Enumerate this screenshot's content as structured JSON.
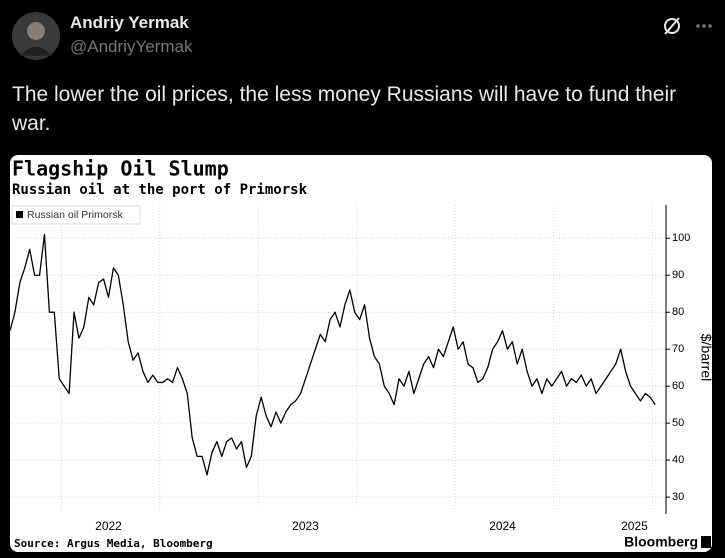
{
  "post": {
    "author": "Andriy Yermak",
    "handle": "@AndriyYermak",
    "text": "The lower the oil prices, the less money Russians will have to fund their war."
  },
  "chart_data": {
    "type": "line",
    "title": "Flagship Oil Slump",
    "subtitle": "Russian oil at the port of Primorsk",
    "y_label": "$/barrel",
    "source": "Source: Argus Media, Bloomberg",
    "brand": "Bloomberg",
    "xlim": [
      2022,
      2025.33
    ],
    "ylim": [
      26.5,
      109
    ],
    "xticks": [
      {
        "value": 2022.5,
        "label": "2022"
      },
      {
        "value": 2023.5,
        "label": "2023"
      },
      {
        "value": 2024.5,
        "label": "2024"
      },
      {
        "value": 2025.17,
        "label": "2025"
      }
    ],
    "xgrid": [
      2022.26,
      2022.76,
      2023.26,
      2023.76,
      2024.26,
      2024.76,
      2025.26
    ],
    "yticks": [
      30,
      40,
      50,
      60,
      70,
      80,
      90,
      100
    ],
    "grid": true,
    "legend": "upper left",
    "x": [
      2022,
      2022.025,
      2022.05,
      2022.075,
      2022.1,
      2022.125,
      2022.15,
      2022.175,
      2022.2,
      2022.225,
      2022.25,
      2022.275,
      2022.3,
      2022.325,
      2022.35,
      2022.375,
      2022.4,
      2022.425,
      2022.45,
      2022.475,
      2022.5,
      2022.525,
      2022.55,
      2022.575,
      2022.6,
      2022.625,
      2022.65,
      2022.675,
      2022.7,
      2022.725,
      2022.75,
      2022.775,
      2022.8,
      2022.825,
      2022.85,
      2022.875,
      2022.9,
      2022.925,
      2022.95,
      2022.975,
      2023,
      2023.025,
      2023.05,
      2023.075,
      2023.1,
      2023.125,
      2023.15,
      2023.175,
      2023.2,
      2023.225,
      2023.25,
      2023.275,
      2023.3,
      2023.325,
      2023.35,
      2023.375,
      2023.4,
      2023.425,
      2023.45,
      2023.475,
      2023.5,
      2023.525,
      2023.55,
      2023.575,
      2023.6,
      2023.625,
      2023.65,
      2023.675,
      2023.7,
      2023.725,
      2023.75,
      2023.775,
      2023.8,
      2023.825,
      2023.85,
      2023.875,
      2023.9,
      2023.925,
      2023.95,
      2023.975,
      2024,
      2024.025,
      2024.05,
      2024.075,
      2024.1,
      2024.125,
      2024.15,
      2024.175,
      2024.2,
      2024.225,
      2024.25,
      2024.275,
      2024.3,
      2024.325,
      2024.35,
      2024.375,
      2024.4,
      2024.425,
      2024.45,
      2024.475,
      2024.5,
      2024.525,
      2024.55,
      2024.575,
      2024.6,
      2024.625,
      2024.65,
      2024.675,
      2024.7,
      2024.725,
      2024.75,
      2024.775,
      2024.8,
      2024.825,
      2024.85,
      2024.875,
      2024.9,
      2024.925,
      2024.95,
      2024.975,
      2025,
      2025.025,
      2025.05,
      2025.075,
      2025.1,
      2025.125,
      2025.15,
      2025.175,
      2025.2,
      2025.225,
      2025.25,
      2025.275
    ],
    "series": [
      {
        "name": "Russian oil Primorsk",
        "color": "#000000",
        "values": [
          75,
          80,
          88,
          92,
          97,
          90,
          90,
          101,
          80,
          80,
          62,
          60,
          58,
          80,
          73,
          76,
          84,
          82,
          88,
          89,
          84,
          92,
          90,
          82,
          72,
          67,
          69,
          64,
          61,
          63,
          61,
          61,
          62,
          61,
          65,
          62,
          58,
          46,
          41,
          41,
          36,
          42,
          45,
          41,
          45,
          46,
          43,
          45,
          38,
          41,
          52,
          57,
          52,
          49,
          53,
          50,
          53,
          55,
          56,
          58,
          62,
          66,
          70,
          74,
          72,
          78,
          80,
          76,
          82,
          86,
          80,
          78,
          82,
          73,
          68,
          66,
          60,
          58,
          55,
          62,
          60,
          64,
          58,
          62,
          66,
          68,
          65,
          70,
          68,
          72,
          76,
          70,
          72,
          66,
          65,
          61,
          62,
          65,
          70,
          72,
          75,
          70,
          72,
          66,
          70,
          64,
          60,
          62,
          58,
          62,
          60,
          62,
          64,
          60,
          62,
          61,
          63,
          60,
          62,
          58,
          60,
          62,
          64,
          66,
          70,
          64,
          60,
          58,
          56,
          58,
          57,
          55
        ]
      }
    ]
  }
}
